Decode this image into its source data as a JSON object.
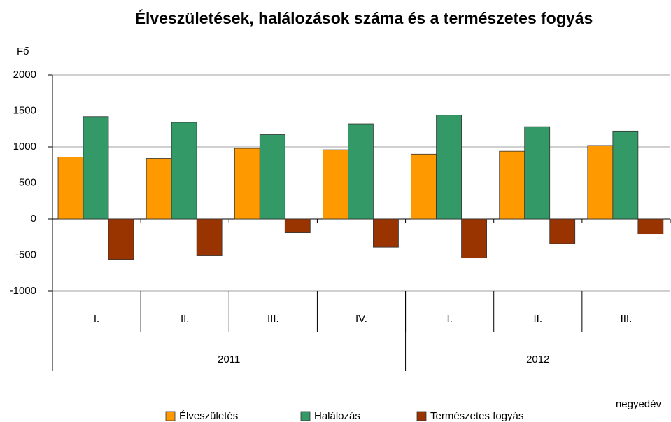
{
  "chart_data": {
    "type": "bar",
    "title": "Élveszületések, halálozások száma és a természetes fogyás",
    "y_label": "Fő",
    "x_label": "negyedév",
    "categories": [
      "I.",
      "II.",
      "III.",
      "IV.",
      "I.",
      "II.",
      "III."
    ],
    "year_groups": [
      {
        "name": "2011",
        "size": 4
      },
      {
        "name": "2012",
        "size": 3
      }
    ],
    "series": [
      {
        "name": "Élveszületés",
        "color": "#ff9900",
        "values": [
          860,
          840,
          980,
          960,
          900,
          940,
          1020
        ]
      },
      {
        "name": "Halálozás",
        "color": "#339966",
        "values": [
          1420,
          1340,
          1170,
          1320,
          1440,
          1280,
          1220
        ]
      },
      {
        "name": "Természetes fogyás",
        "color": "#993300",
        "values": [
          -560,
          -510,
          -190,
          -390,
          -540,
          -340,
          -210
        ]
      }
    ],
    "ylim": [
      -1000,
      2000
    ],
    "yticks": [
      -1000,
      -500,
      0,
      500,
      1000,
      1500,
      2000
    ],
    "grid": true,
    "legend": "bottom"
  }
}
